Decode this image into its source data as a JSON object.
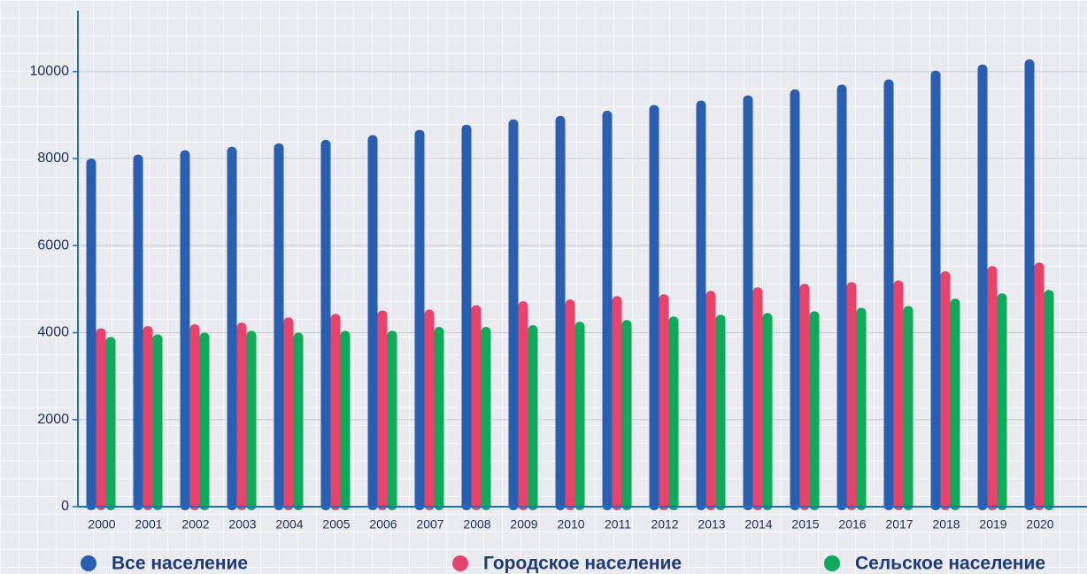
{
  "chart_data": {
    "type": "bar",
    "categories": [
      "2000",
      "2001",
      "2002",
      "2003",
      "2004",
      "2005",
      "2006",
      "2007",
      "2008",
      "2009",
      "2010",
      "2011",
      "2012",
      "2013",
      "2014",
      "2015",
      "2016",
      "2017",
      "2018",
      "2019",
      "2020"
    ],
    "series": [
      {
        "name": "Все население",
        "color": "#2a5eb0",
        "values": [
          8000,
          8090,
          8190,
          8270,
          8350,
          8430,
          8540,
          8660,
          8780,
          8900,
          8980,
          9100,
          9230,
          9330,
          9450,
          9590,
          9700,
          9820,
          10020,
          10160,
          10280
        ]
      },
      {
        "name": "Городское население",
        "color": "#e8446b",
        "values": [
          4100,
          4150,
          4190,
          4230,
          4350,
          4430,
          4510,
          4530,
          4630,
          4720,
          4760,
          4840,
          4880,
          4960,
          5040,
          5120,
          5160,
          5200,
          5410,
          5530,
          5610
        ]
      },
      {
        "name": "Сельское население",
        "color": "#10a85a",
        "values": [
          3900,
          3960,
          4000,
          4040,
          4000,
          4040,
          4040,
          4130,
          4130,
          4170,
          4250,
          4290,
          4370,
          4410,
          4450,
          4490,
          4570,
          4610,
          4780,
          4900,
          4980
        ]
      }
    ],
    "ylim": [
      0,
      11400
    ],
    "yticks": [
      0,
      2000,
      4000,
      6000,
      8000,
      10000
    ],
    "grid": true,
    "legend": "bottom"
  }
}
